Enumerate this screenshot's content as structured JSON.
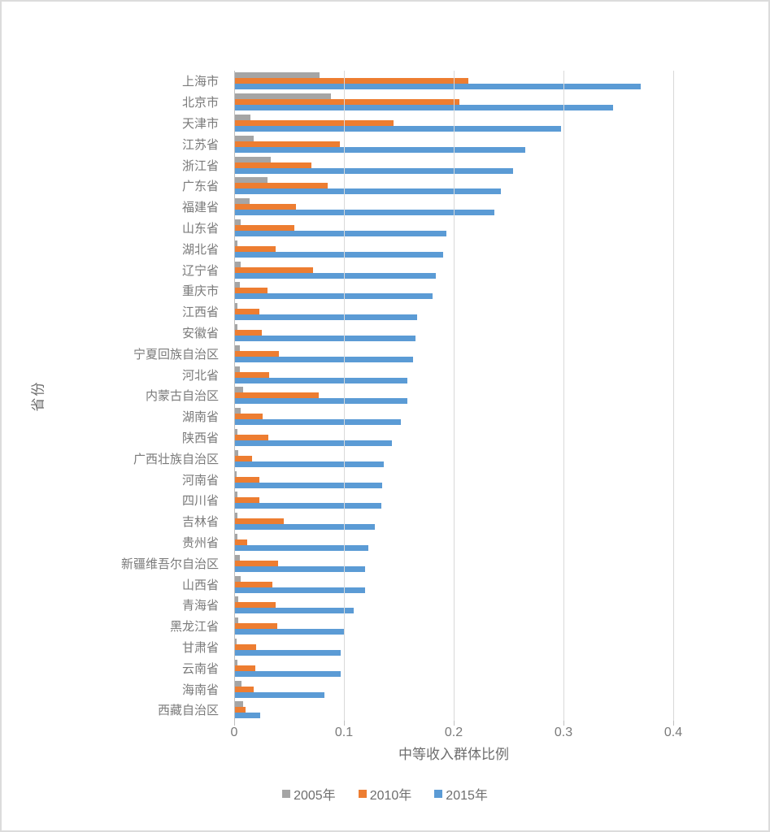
{
  "chart_data": {
    "type": "bar",
    "orientation": "horizontal",
    "xlabel": "中等收入群体比例",
    "ylabel": "省份",
    "xticks": [
      0,
      0.1,
      0.2,
      0.3,
      0.4
    ],
    "xlim": [
      0,
      0.4
    ],
    "grid": true,
    "legend_position": "bottom",
    "categories": [
      "上海市",
      "北京市",
      "天津市",
      "江苏省",
      "浙江省",
      "广东省",
      "福建省",
      "山东省",
      "湖北省",
      "辽宁省",
      "重庆市",
      "江西省",
      "安徽省",
      "宁夏回族自治区",
      "河北省",
      "内蒙古自治区",
      "湖南省",
      "陕西省",
      "广西壮族自治区",
      "河南省",
      "四川省",
      "吉林省",
      "贵州省",
      "新疆维吾尔自治区",
      "山西省",
      "青海省",
      "黑龙江省",
      "甘肃省",
      "云南省",
      "海南省",
      "西藏自治区"
    ],
    "series": [
      {
        "name": "2005年",
        "color": "#A5A5A5",
        "values": [
          0.078,
          0.088,
          0.015,
          0.018,
          0.033,
          0.03,
          0.014,
          0.006,
          0.003,
          0.006,
          0.005,
          0.003,
          0.003,
          0.005,
          0.005,
          0.008,
          0.006,
          0.003,
          0.004,
          0.002,
          0.003,
          0.003,
          0.003,
          0.005,
          0.006,
          0.004,
          0.004,
          0.002,
          0.003,
          0.007,
          0.008
        ]
      },
      {
        "name": "2010年",
        "color": "#ED7D31",
        "values": [
          0.213,
          0.205,
          0.145,
          0.096,
          0.07,
          0.085,
          0.056,
          0.055,
          0.038,
          0.072,
          0.03,
          0.023,
          0.025,
          0.041,
          0.032,
          0.077,
          0.026,
          0.031,
          0.016,
          0.023,
          0.023,
          0.045,
          0.012,
          0.04,
          0.035,
          0.038,
          0.039,
          0.02,
          0.019,
          0.018,
          0.01
        ]
      },
      {
        "name": "2015年",
        "color": "#5B9BD5",
        "values": [
          0.37,
          0.345,
          0.298,
          0.265,
          0.254,
          0.243,
          0.237,
          0.193,
          0.19,
          0.184,
          0.181,
          0.167,
          0.165,
          0.163,
          0.158,
          0.158,
          0.152,
          0.144,
          0.136,
          0.135,
          0.134,
          0.128,
          0.122,
          0.119,
          0.119,
          0.109,
          0.1,
          0.097,
          0.097,
          0.082,
          0.024
        ]
      }
    ],
    "theme": {
      "gridline_color": "#d9d9d9",
      "axis_color": "#bfbfbf",
      "text_color": "#7a7a7a",
      "background": "#ffffff",
      "frame_border": "#dcdcdc"
    }
  }
}
